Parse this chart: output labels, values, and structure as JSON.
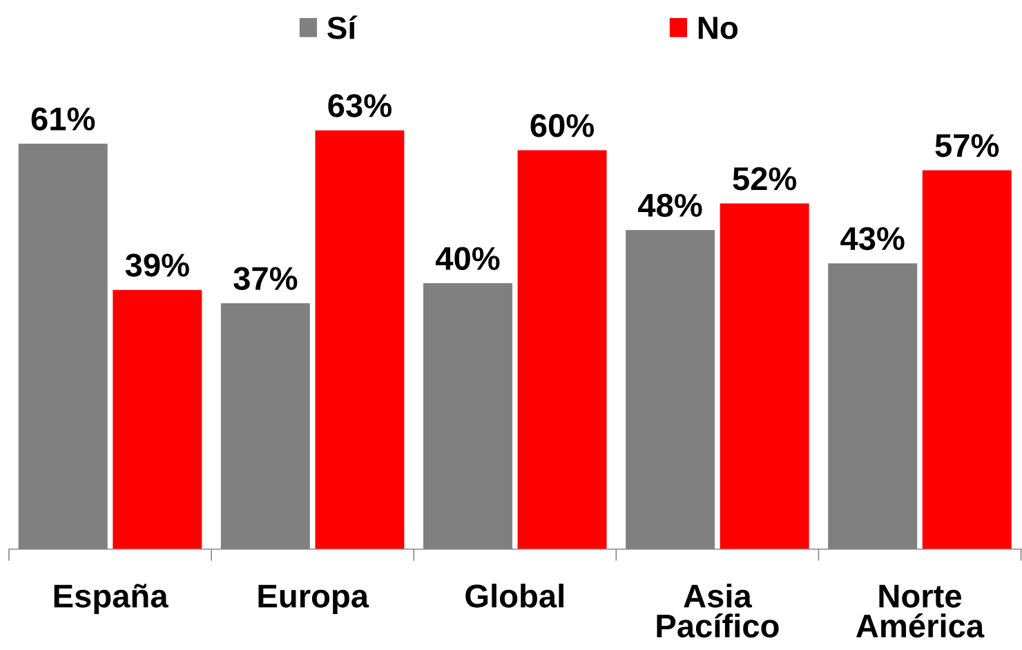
{
  "chart_data": {
    "type": "bar",
    "categories": [
      "España",
      "Europa",
      "Global",
      "Asia\nPacífico",
      "Norte\nAmérica"
    ],
    "series": [
      {
        "name": "Sí",
        "color": "#808080",
        "values": [
          61,
          37,
          40,
          48,
          43
        ],
        "value_labels": [
          "61%",
          "37%",
          "40%",
          "48%",
          "43%"
        ]
      },
      {
        "name": "No",
        "color": "#ff0000",
        "values": [
          39,
          63,
          60,
          52,
          57
        ],
        "value_labels": [
          "39%",
          "63%",
          "60%",
          "52%",
          "57%"
        ]
      }
    ],
    "tick_labels": "x",
    "grid": false,
    "legend": "top"
  }
}
